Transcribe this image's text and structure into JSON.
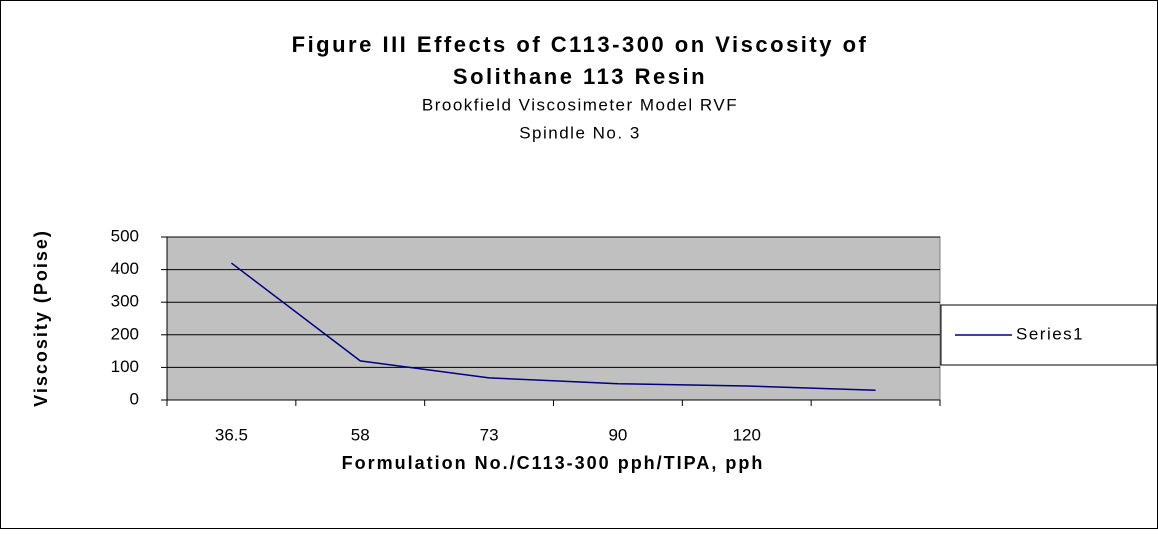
{
  "chart_data": {
    "type": "line",
    "title": "Figure III Effects of C113-300 on Viscosity of",
    "title_line2": "Solithane 113 Resin",
    "subtitle": "Brookfield Viscosimeter Model RVF",
    "subtitle_line2": "Spindle No. 3",
    "x_label": "Formulation No./C113-300 pph/TIPA, pph",
    "y_label": "Viscosity (Poise)",
    "categories": [
      "36.5",
      "58",
      "73",
      "90",
      "120",
      null
    ],
    "series": [
      {
        "name": "Series1",
        "color": "#000080",
        "values": [
          420,
          120,
          68,
          50,
          43,
          30
        ]
      }
    ],
    "ylim": [
      0,
      500
    ],
    "yticks": [
      0,
      100,
      200,
      300,
      400,
      500
    ],
    "grid": true,
    "legend": "right"
  }
}
